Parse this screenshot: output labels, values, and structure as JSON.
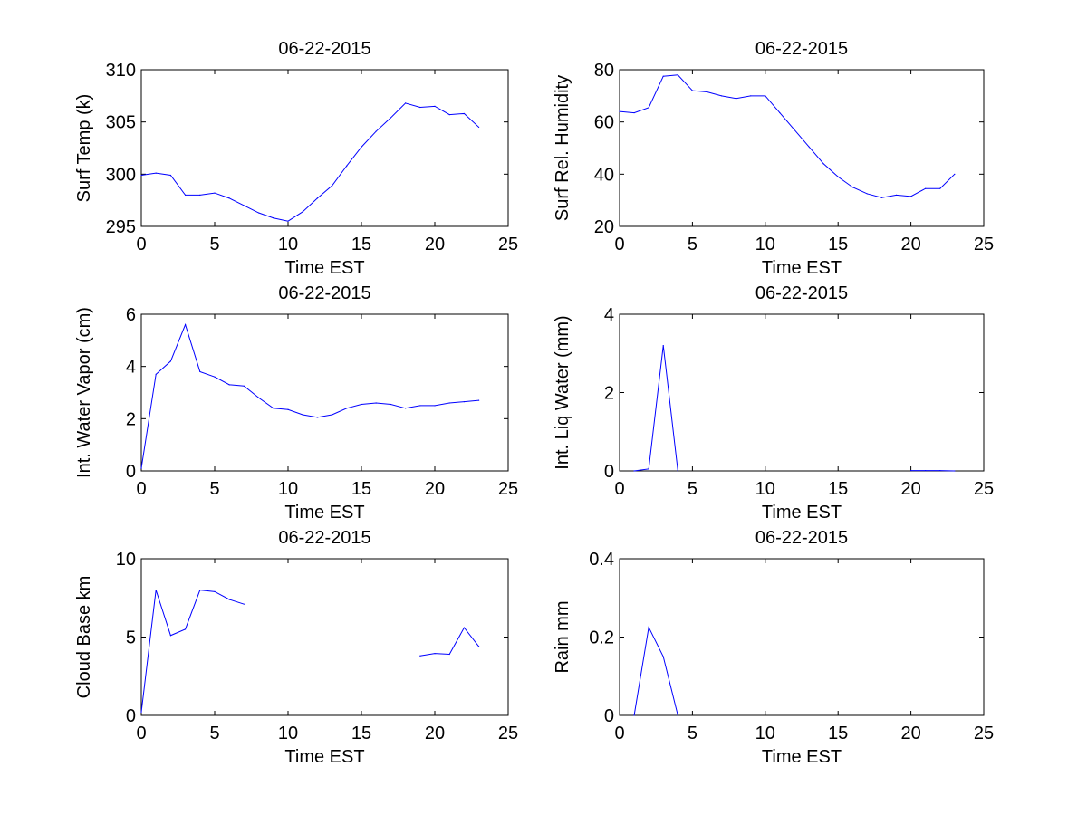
{
  "colors": {
    "line": "#0000ff",
    "axis": "#000000",
    "background": "#ffffff"
  },
  "chart_data": [
    {
      "type": "line",
      "title": "06-22-2015",
      "xlabel": "Time EST",
      "ylabel": "Surf Temp (k)",
      "xlim": [
        0,
        25
      ],
      "ylim": [
        295,
        310
      ],
      "xticks": [
        0,
        5,
        10,
        15,
        20,
        25
      ],
      "yticks": [
        295,
        300,
        305,
        310
      ],
      "grid": false,
      "series": [
        {
          "x": [
            0,
            1,
            2,
            3,
            4,
            5,
            6,
            7,
            8,
            9,
            10,
            11,
            12,
            13,
            14,
            15,
            16,
            17,
            18,
            19,
            20,
            21,
            22,
            23
          ],
          "values": [
            299.9,
            300.1,
            299.9,
            298.0,
            298.0,
            298.2,
            297.7,
            297.0,
            296.3,
            295.8,
            295.5,
            296.4,
            297.7,
            298.9,
            300.8,
            302.6,
            304.1,
            305.4,
            306.8,
            306.4,
            306.5,
            305.7,
            305.8,
            304.5
          ]
        }
      ]
    },
    {
      "type": "line",
      "title": "06-22-2015",
      "xlabel": "Time EST",
      "ylabel": "Surf Rel. Humidity",
      "xlim": [
        0,
        25
      ],
      "ylim": [
        20,
        80
      ],
      "xticks": [
        0,
        5,
        10,
        15,
        20,
        25
      ],
      "yticks": [
        20,
        40,
        60,
        80
      ],
      "grid": false,
      "series": [
        {
          "x": [
            0,
            1,
            2,
            3,
            4,
            5,
            6,
            7,
            8,
            9,
            10,
            11,
            12,
            13,
            14,
            15,
            16,
            17,
            18,
            19,
            20,
            21,
            22,
            23
          ],
          "values": [
            64,
            63.5,
            65.5,
            77.5,
            78,
            72,
            71.5,
            70,
            69,
            70,
            70,
            63.5,
            57,
            50.5,
            44,
            39,
            35,
            32.5,
            31,
            32,
            31.5,
            34.5,
            34.5,
            40
          ]
        }
      ]
    },
    {
      "type": "line",
      "title": "06-22-2015",
      "xlabel": "Time EST",
      "ylabel": "Int. Water Vapor (cm)",
      "xlim": [
        0,
        25
      ],
      "ylim": [
        0,
        6
      ],
      "xticks": [
        0,
        5,
        10,
        15,
        20,
        25
      ],
      "yticks": [
        0,
        2,
        4,
        6
      ],
      "grid": false,
      "series": [
        {
          "x": [
            0,
            1,
            2,
            3,
            4,
            5,
            6,
            7,
            8,
            9,
            10,
            11,
            12,
            13,
            14,
            15,
            16,
            17,
            18,
            19,
            20,
            21,
            22,
            23
          ],
          "values": [
            0.1,
            3.7,
            4.2,
            5.6,
            3.8,
            3.6,
            3.3,
            3.25,
            2.8,
            2.4,
            2.35,
            2.15,
            2.05,
            2.15,
            2.4,
            2.55,
            2.6,
            2.55,
            2.4,
            2.5,
            2.5,
            2.6,
            2.65,
            2.7
          ]
        }
      ]
    },
    {
      "type": "line",
      "title": "06-22-2015",
      "xlabel": "Time EST",
      "ylabel": "Int. Liq Water (mm)",
      "xlim": [
        0,
        25
      ],
      "ylim": [
        0,
        4
      ],
      "xticks": [
        0,
        5,
        10,
        15,
        20,
        25
      ],
      "yticks": [
        0,
        2,
        4
      ],
      "grid": false,
      "series": [
        {
          "x": [
            1,
            2,
            3,
            4,
            null,
            20,
            21,
            22,
            23
          ],
          "values": [
            0.0,
            0.05,
            3.2,
            0.0,
            null,
            0.01,
            0.01,
            0.01,
            0.0
          ]
        }
      ]
    },
    {
      "type": "line",
      "title": "06-22-2015",
      "xlabel": "Time EST",
      "ylabel": "Cloud Base km",
      "xlim": [
        0,
        25
      ],
      "ylim": [
        0,
        10
      ],
      "xticks": [
        0,
        5,
        10,
        15,
        20,
        25
      ],
      "yticks": [
        0,
        5,
        10
      ],
      "grid": false,
      "series": [
        {
          "x": [
            0,
            1,
            2,
            3,
            4,
            5,
            6,
            7,
            null,
            19,
            20,
            21,
            22,
            23
          ],
          "values": [
            0.2,
            8.0,
            5.1,
            5.5,
            8.0,
            7.9,
            7.4,
            7.1,
            null,
            3.8,
            3.95,
            3.9,
            5.6,
            4.4
          ]
        }
      ]
    },
    {
      "type": "line",
      "title": "06-22-2015",
      "xlabel": "Time EST",
      "ylabel": "Rain mm",
      "xlim": [
        0,
        25
      ],
      "ylim": [
        0,
        0.4
      ],
      "xticks": [
        0,
        5,
        10,
        15,
        20,
        25
      ],
      "yticks": [
        0,
        0.2,
        0.4
      ],
      "grid": false,
      "series": [
        {
          "x": [
            1,
            2,
            3,
            4
          ],
          "values": [
            0.0,
            0.225,
            0.15,
            0.0
          ]
        }
      ]
    }
  ]
}
